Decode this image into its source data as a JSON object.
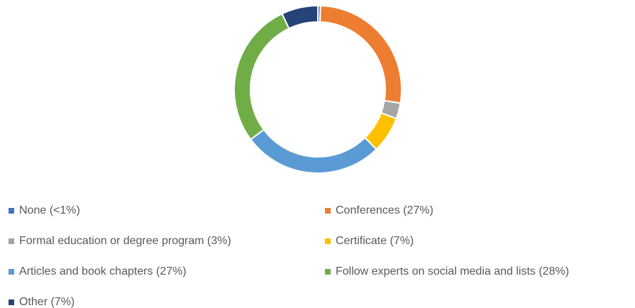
{
  "chart_data": {
    "type": "donut",
    "categories": [
      "None (<1%)",
      "Conferences (27%)",
      "Formal education or degree program (3%)",
      "Certificate (7%)",
      "Articles and book chapters (27%)",
      "Follow experts on social media and lists (28%)",
      "Other (7%)"
    ],
    "values": [
      0.5,
      27,
      3,
      7,
      27,
      28,
      7
    ],
    "colors": [
      "#4472c4",
      "#ed7d31",
      "#a5a5a5",
      "#ffc000",
      "#5b9bd5",
      "#70ad47",
      "#264478"
    ],
    "legend": "bottom"
  }
}
